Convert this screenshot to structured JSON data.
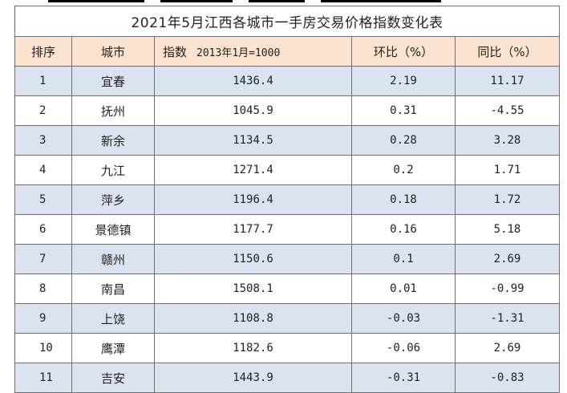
{
  "table": {
    "title": "2021年5月江西各城市一手房交易价格指数变化表",
    "headers": {
      "rank": "排序",
      "city": "城市",
      "index_label": "指数",
      "index_base": "2013年1月=1000",
      "mom": "环比（%）",
      "yoy": "同比（%）"
    },
    "rows": [
      {
        "rank": "1",
        "city": "宜春",
        "index": "1436.4",
        "mom": "2.19",
        "yoy": "11.17"
      },
      {
        "rank": "2",
        "city": "抚州",
        "index": "1045.9",
        "mom": "0.31",
        "yoy": "-4.55"
      },
      {
        "rank": "3",
        "city": "新余",
        "index": "1134.5",
        "mom": "0.28",
        "yoy": "3.28"
      },
      {
        "rank": "4",
        "city": "九江",
        "index": "1271.4",
        "mom": "0.2",
        "yoy": "1.71"
      },
      {
        "rank": "5",
        "city": "萍乡",
        "index": "1196.4",
        "mom": "0.18",
        "yoy": "1.72"
      },
      {
        "rank": "6",
        "city": "景德镇",
        "index": "1177.7",
        "mom": "0.16",
        "yoy": "5.18"
      },
      {
        "rank": "7",
        "city": "赣州",
        "index": "1150.6",
        "mom": "0.1",
        "yoy": "2.69"
      },
      {
        "rank": "8",
        "city": "南昌",
        "index": "1508.1",
        "mom": "0.01",
        "yoy": "-0.99"
      },
      {
        "rank": "9",
        "city": "上饶",
        "index": "1108.8",
        "mom": "-0.03",
        "yoy": "-1.31"
      },
      {
        "rank": "10",
        "city": "鹰潭",
        "index": "1182.6",
        "mom": "-0.06",
        "yoy": "2.69"
      },
      {
        "rank": "11",
        "city": "吉安",
        "index": "1443.9",
        "mom": "-0.31",
        "yoy": "-0.83"
      }
    ],
    "colors": {
      "header_bg": "#fbe3cf",
      "shaded_row_bg": "#dae3ef",
      "border": "#6f6f6f"
    }
  }
}
